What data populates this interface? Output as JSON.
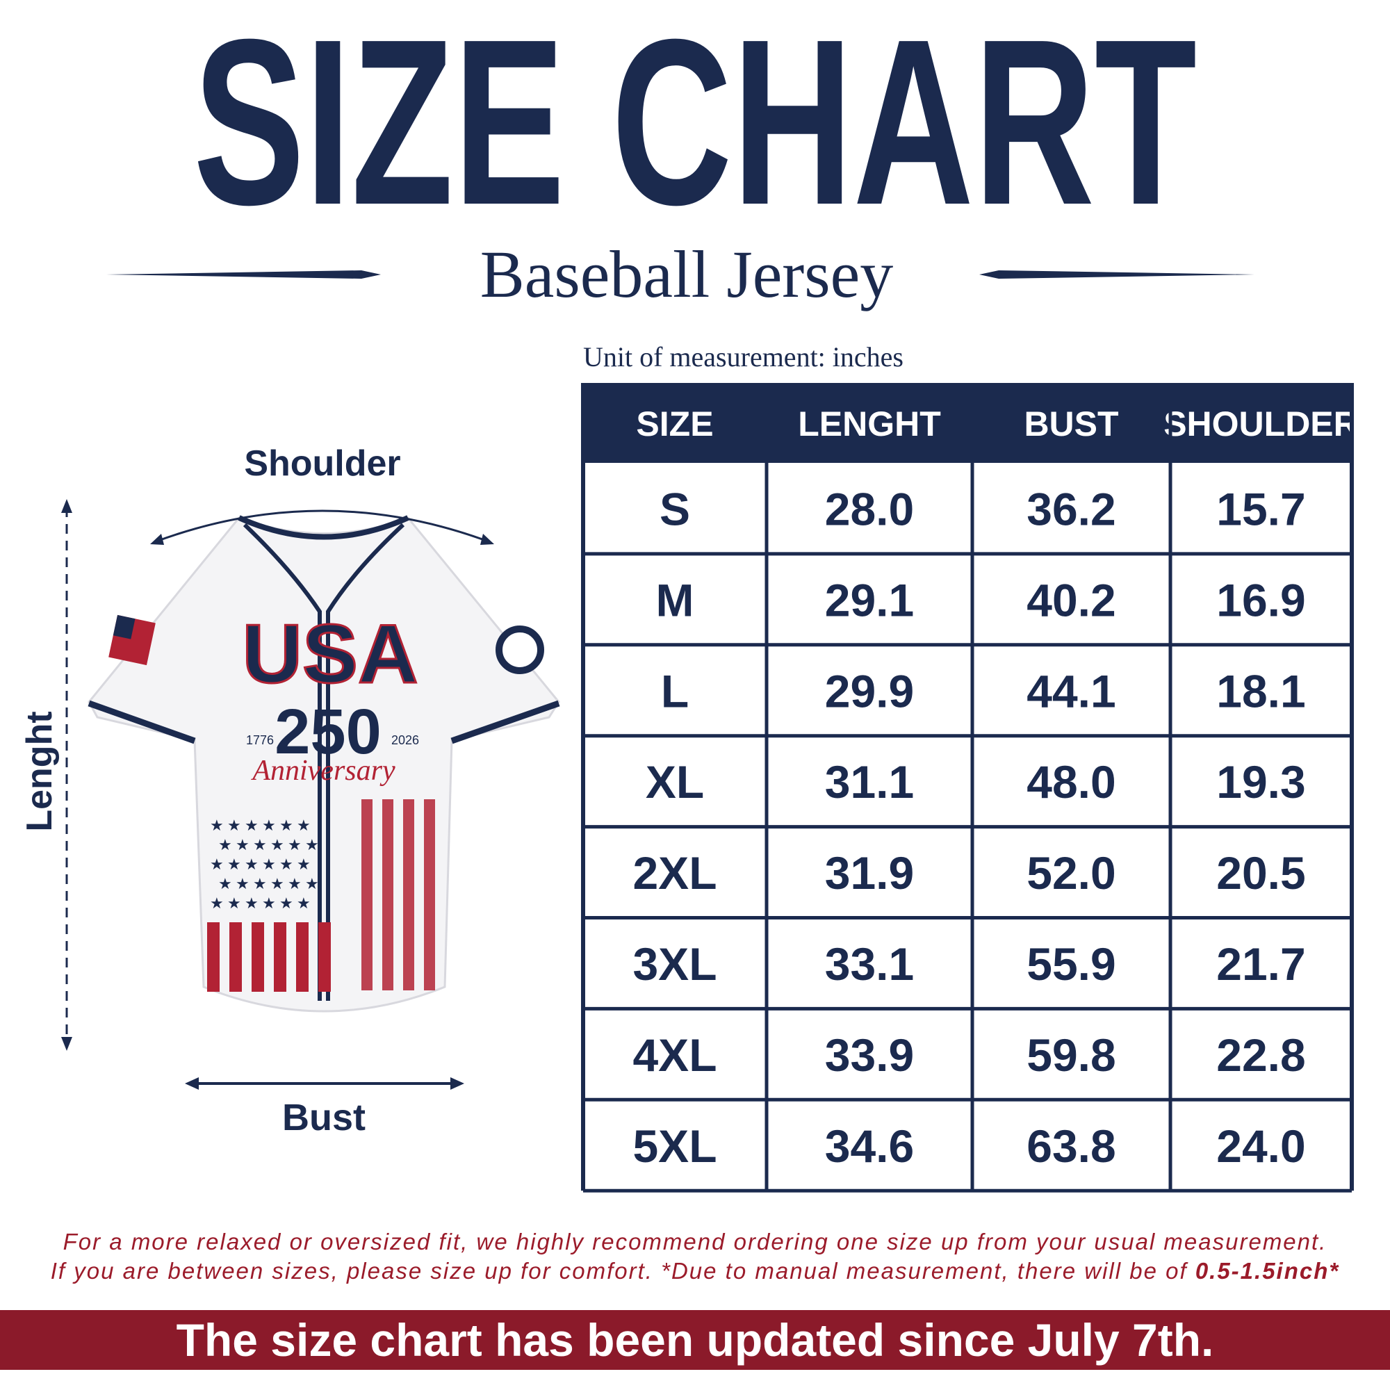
{
  "header": {
    "title": "SIZE CHART",
    "subtitle": "Baseball Jersey"
  },
  "diagram": {
    "shoulder_label": "Shoulder",
    "length_label": "Lenght",
    "bust_label": "Bust",
    "jersey_text": {
      "usa": "USA",
      "number": "250",
      "year_start": "1776",
      "year_end": "2026",
      "anniversary": "Anniversary"
    }
  },
  "unit": "Unit of measurement: inches",
  "table": {
    "columns": [
      "SIZE",
      "LENGHT",
      "BUST",
      "SHOULDER"
    ],
    "rows": [
      [
        "S",
        "28.0",
        "36.2",
        "15.7"
      ],
      [
        "M",
        "29.1",
        "40.2",
        "16.9"
      ],
      [
        "L",
        "29.9",
        "44.1",
        "18.1"
      ],
      [
        "XL",
        "31.1",
        "48.0",
        "19.3"
      ],
      [
        "2XL",
        "31.9",
        "52.0",
        "20.5"
      ],
      [
        "3XL",
        "33.1",
        "55.9",
        "21.7"
      ],
      [
        "4XL",
        "33.9",
        "59.8",
        "22.8"
      ],
      [
        "5XL",
        "34.6",
        "63.8",
        "24.0"
      ]
    ]
  },
  "notes": {
    "line1": "For a more relaxed or oversized fit, we highly recommend ordering one size up from your usual measurement.",
    "line2": "If you are between sizes, please size up for comfort. *Due to manual measurement, there will be of ",
    "line2_emphasis": "0.5-1.5inch*"
  },
  "banner": "The size chart has been updated since July 7th."
}
